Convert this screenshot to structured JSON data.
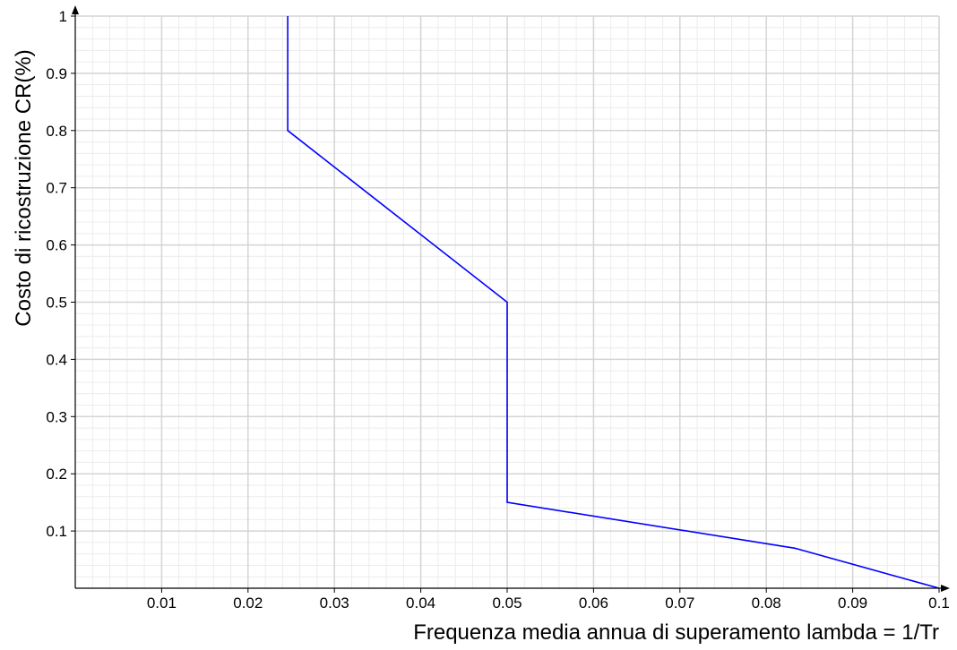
{
  "chart_data": {
    "type": "line",
    "title": "",
    "xlabel": "Frequenza media annua di superamento lambda = 1/Tr",
    "ylabel": "Costo di ricostruzione CR(%)",
    "xlim": [
      0,
      0.1
    ],
    "ylim": [
      0,
      1
    ],
    "x_ticks": [
      "0.01",
      "0.02",
      "0.03",
      "0.04",
      "0.05",
      "0.06",
      "0.07",
      "0.08",
      "0.09",
      "0.1"
    ],
    "y_ticks": [
      "0.1",
      "0.2",
      "0.3",
      "0.4",
      "0.5",
      "0.6",
      "0.7",
      "0.8",
      "0.9",
      "1"
    ],
    "grid": true,
    "series": [
      {
        "color": "#0000ff",
        "x": [
          0.0246,
          0.0246,
          0.05,
          0.05,
          0.0833,
          0.1
        ],
        "y": [
          1.0,
          0.8,
          0.5,
          0.15,
          0.07,
          0.0
        ]
      }
    ]
  }
}
